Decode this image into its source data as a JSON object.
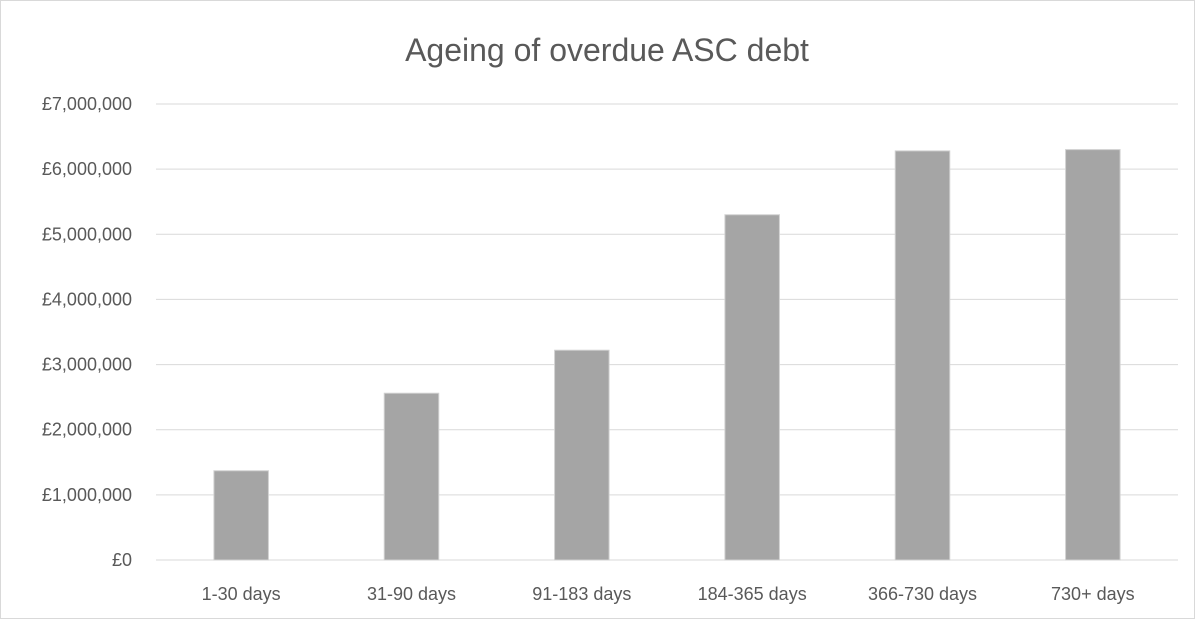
{
  "chart_data": {
    "type": "bar",
    "title": "Ageing of overdue ASC debt",
    "xlabel": "",
    "ylabel": "",
    "categories": [
      "1-30 days",
      "31-90 days",
      "91-183 days",
      "184-365 days",
      "366-730 days",
      "730+ days"
    ],
    "values": [
      1370000,
      2560000,
      3220000,
      5300000,
      6280000,
      6300000
    ],
    "ylim": [
      0,
      7000000
    ],
    "yticks": [
      0,
      1000000,
      2000000,
      3000000,
      4000000,
      5000000,
      6000000,
      7000000
    ],
    "ytick_labels": [
      "£0",
      "£1,000,000",
      "£2,000,000",
      "£3,000,000",
      "£4,000,000",
      "£5,000,000",
      "£6,000,000",
      "£7,000,000"
    ],
    "grid": true,
    "legend": "none",
    "bar_color": "#a5a5a5"
  }
}
